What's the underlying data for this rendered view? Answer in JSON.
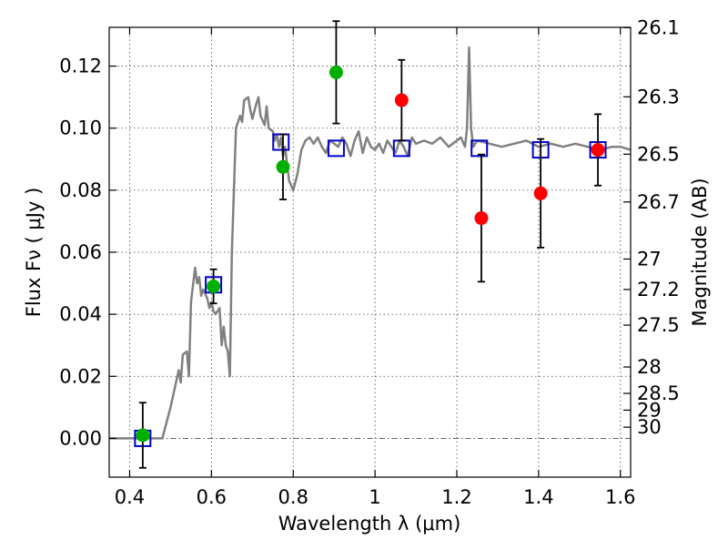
{
  "chart_data": {
    "type": "scatter",
    "xlabel": "Wavelength  λ (μm)",
    "ylabel": "Flux  Fν  ( μJy )",
    "y2label": "Magnitude (AB)",
    "xlim": [
      0.35,
      1.625
    ],
    "ylim": [
      -0.0125,
      0.1325
    ],
    "grid": true,
    "x_ticks": [
      0.4,
      0.6,
      0.8,
      1.0,
      1.2,
      1.4,
      1.6
    ],
    "x_tick_labels": [
      "0.4",
      "0.6",
      "0.8",
      "1",
      "1.2",
      "1.4",
      "1.6"
    ],
    "y_ticks": [
      0.0,
      0.02,
      0.04,
      0.06,
      0.08,
      0.1,
      0.12
    ],
    "y_tick_labels": [
      "0.00",
      "0.02",
      "0.04",
      "0.06",
      "0.08",
      "0.10",
      "0.12"
    ],
    "y2_ticks": [
      {
        "label": "26.1",
        "flux": 0.1324
      },
      {
        "label": "26.3",
        "flux": 0.1101
      },
      {
        "label": "26.5",
        "flux": 0.0916
      },
      {
        "label": "26.7",
        "flux": 0.0762
      },
      {
        "label": "27",
        "flux": 0.0578
      },
      {
        "label": "27.2",
        "flux": 0.048
      },
      {
        "label": "27.5",
        "flux": 0.0365
      },
      {
        "label": "28",
        "flux": 0.023
      },
      {
        "label": "28.5",
        "flux": 0.0145
      },
      {
        "label": "29",
        "flux": 0.0091
      },
      {
        "label": "30",
        "flux": 0.0036
      }
    ],
    "colors": {
      "sed_line": "#808080",
      "model_squares": "#0000cc",
      "green_points": "#00b000",
      "red_points": "#ff0000",
      "error_bars": "#000000",
      "grid": "#444444",
      "zero_line": "#555555"
    },
    "series": [
      {
        "type": "line",
        "x": [
          0.35,
          0.47,
          0.48,
          0.5,
          0.51,
          0.52,
          0.525,
          0.53,
          0.54,
          0.545,
          0.55,
          0.56,
          0.565,
          0.57,
          0.575,
          0.58,
          0.59,
          0.595,
          0.6,
          0.605,
          0.61,
          0.62,
          0.625,
          0.63,
          0.635,
          0.64,
          0.645,
          0.65,
          0.66,
          0.67,
          0.675,
          0.68,
          0.69,
          0.695,
          0.7,
          0.71,
          0.715,
          0.72,
          0.73,
          0.735,
          0.74,
          0.75,
          0.755,
          0.76,
          0.765,
          0.77,
          0.775,
          0.78,
          0.79,
          0.8,
          0.81,
          0.82,
          0.83,
          0.84,
          0.85,
          0.86,
          0.87,
          0.88,
          0.89,
          0.9,
          0.91,
          0.92,
          0.93,
          0.94,
          0.95,
          0.96,
          0.97,
          0.98,
          0.99,
          1.0,
          1.01,
          1.02,
          1.03,
          1.04,
          1.05,
          1.06,
          1.07,
          1.08,
          1.09,
          1.1,
          1.12,
          1.14,
          1.16,
          1.18,
          1.2,
          1.21,
          1.22,
          1.225,
          1.23,
          1.235,
          1.24,
          1.25,
          1.28,
          1.31,
          1.34,
          1.37,
          1.4,
          1.43,
          1.46,
          1.49,
          1.52,
          1.55,
          1.58,
          1.6,
          1.625
        ],
        "y": [
          0.0,
          0.0,
          0.0,
          0.01,
          0.016,
          0.022,
          0.018,
          0.027,
          0.028,
          0.02,
          0.044,
          0.055,
          0.05,
          0.052,
          0.046,
          0.048,
          0.045,
          0.042,
          0.044,
          0.041,
          0.04,
          0.042,
          0.03,
          0.036,
          0.03,
          0.028,
          0.02,
          0.06,
          0.1,
          0.104,
          0.102,
          0.109,
          0.11,
          0.106,
          0.103,
          0.108,
          0.11,
          0.104,
          0.101,
          0.107,
          0.1,
          0.099,
          0.096,
          0.098,
          0.094,
          0.097,
          0.091,
          0.094,
          0.083,
          0.08,
          0.085,
          0.093,
          0.096,
          0.097,
          0.095,
          0.097,
          0.094,
          0.092,
          0.096,
          0.095,
          0.094,
          0.097,
          0.095,
          0.091,
          0.096,
          0.099,
          0.092,
          0.097,
          0.094,
          0.093,
          0.095,
          0.092,
          0.096,
          0.094,
          0.092,
          0.096,
          0.094,
          0.091,
          0.097,
          0.095,
          0.096,
          0.095,
          0.097,
          0.094,
          0.096,
          0.097,
          0.094,
          0.1,
          0.126,
          0.1,
          0.094,
          0.096,
          0.095,
          0.094,
          0.095,
          0.096,
          0.094,
          0.095,
          0.094,
          0.095,
          0.094,
          0.093,
          0.094,
          0.094,
          0.093
        ]
      },
      {
        "type": "model_squares",
        "x": [
          0.432,
          0.605,
          0.77,
          0.905,
          1.065,
          1.255,
          1.405,
          1.545
        ],
        "y": [
          0.0,
          0.0495,
          0.0955,
          0.0935,
          0.0935,
          0.0935,
          0.093,
          0.093
        ]
      },
      {
        "type": "points",
        "color_key": "green_points",
        "x": [
          0.432,
          0.605,
          0.775,
          0.905
        ],
        "y": [
          0.001,
          0.049,
          0.0875,
          0.118
        ],
        "err": [
          0.0105,
          0.0055,
          0.0105,
          0.0165
        ]
      },
      {
        "type": "points",
        "color_key": "red_points",
        "x": [
          1.065,
          1.26,
          1.405,
          1.545
        ],
        "y": [
          0.109,
          0.071,
          0.079,
          0.093
        ],
        "err": [
          0.013,
          0.0205,
          0.0175,
          0.0115
        ]
      }
    ]
  }
}
